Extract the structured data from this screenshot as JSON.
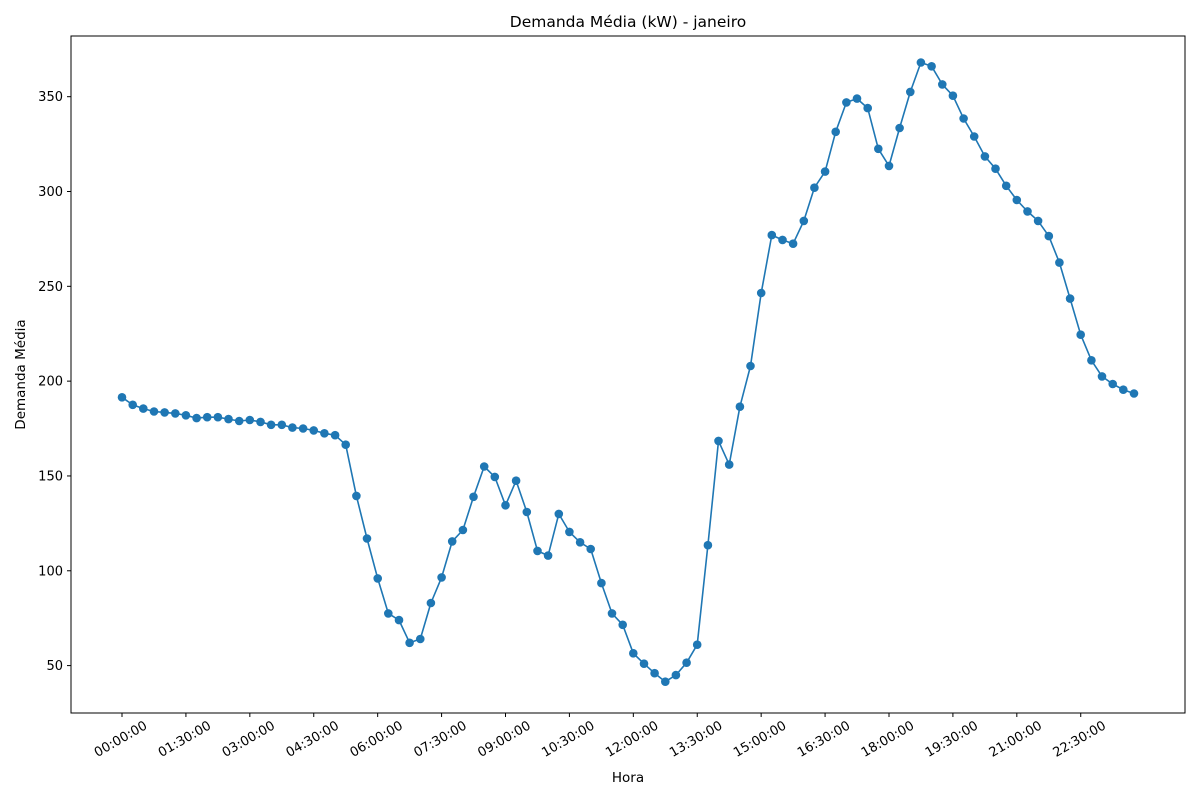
{
  "chart_data": {
    "type": "line",
    "title": "Demanda Média (kW) - janeiro",
    "xlabel": "Hora",
    "ylabel": "Demanda Média",
    "color": "#1f77b4",
    "x_ticks": [
      "00:00:00",
      "01:30:00",
      "03:00:00",
      "04:30:00",
      "06:00:00",
      "07:30:00",
      "09:00:00",
      "10:30:00",
      "12:00:00",
      "13:30:00",
      "15:00:00",
      "16:30:00",
      "18:00:00",
      "19:30:00",
      "21:00:00",
      "22:30:00"
    ],
    "y_ticks": [
      50,
      100,
      150,
      200,
      250,
      300,
      350
    ],
    "ylim": [
      25,
      382
    ],
    "series": [
      {
        "x": [
          "00:00:00",
          "00:15:00",
          "00:30:00",
          "00:45:00",
          "01:00:00",
          "01:15:00",
          "01:30:00",
          "01:45:00",
          "02:00:00",
          "02:15:00",
          "02:30:00",
          "02:45:00",
          "03:00:00",
          "03:15:00",
          "03:30:00",
          "03:45:00",
          "04:00:00",
          "04:15:00",
          "04:30:00",
          "04:45:00",
          "05:00:00",
          "05:15:00",
          "05:30:00",
          "05:45:00",
          "06:00:00",
          "06:15:00",
          "06:30:00",
          "06:45:00",
          "07:00:00",
          "07:15:00",
          "07:30:00",
          "07:45:00",
          "08:00:00",
          "08:15:00",
          "08:30:00",
          "08:45:00",
          "09:00:00",
          "09:15:00",
          "09:30:00",
          "09:45:00",
          "10:00:00",
          "10:15:00",
          "10:30:00",
          "10:45:00",
          "11:00:00",
          "11:15:00",
          "11:30:00",
          "11:45:00",
          "12:00:00",
          "12:15:00",
          "12:30:00",
          "12:45:00",
          "13:00:00",
          "13:15:00",
          "13:30:00",
          "13:45:00",
          "14:00:00",
          "14:15:00",
          "14:30:00",
          "14:45:00",
          "15:00:00",
          "15:15:00",
          "15:30:00",
          "15:45:00",
          "16:00:00",
          "16:15:00",
          "16:30:00",
          "16:45:00",
          "17:00:00",
          "17:15:00",
          "17:30:00",
          "17:45:00",
          "18:00:00",
          "18:15:00",
          "18:30:00",
          "18:45:00",
          "19:00:00",
          "19:15:00",
          "19:30:00",
          "19:45:00",
          "20:00:00",
          "20:15:00",
          "20:30:00",
          "20:45:00",
          "21:00:00",
          "21:15:00",
          "21:30:00",
          "21:45:00",
          "22:00:00",
          "22:15:00",
          "22:30:00",
          "22:45:00",
          "23:00:00",
          "23:15:00",
          "23:30:00",
          "23:45:00"
        ],
        "values": [
          191.5,
          187.5,
          185.5,
          184.0,
          183.5,
          183.0,
          182.0,
          180.5,
          181.0,
          181.0,
          180.0,
          179.0,
          179.5,
          178.5,
          177.0,
          177.0,
          175.5,
          175.0,
          174.0,
          172.5,
          171.5,
          166.5,
          139.5,
          117.0,
          96.0,
          77.5,
          74.0,
          62.0,
          64.0,
          83.0,
          96.5,
          115.5,
          121.5,
          139.0,
          155.0,
          149.5,
          134.5,
          147.5,
          131.0,
          110.5,
          108.0,
          130.0,
          120.5,
          115.0,
          111.5,
          93.5,
          77.5,
          71.5,
          56.5,
          51.0,
          46.0,
          41.5,
          45.0,
          51.5,
          61.0,
          113.5,
          168.5,
          156.0,
          186.5,
          208.0,
          246.5,
          277.0,
          274.5,
          272.5,
          284.5,
          302.0,
          310.5,
          331.5,
          347.0,
          349.0,
          344.0,
          322.5,
          313.5,
          333.5,
          352.5,
          368.0,
          366.0,
          356.5,
          350.5,
          338.5,
          329.0,
          318.5,
          312.0,
          303.0,
          295.5,
          289.5,
          284.5,
          276.5,
          262.5,
          243.5,
          224.5,
          211.0,
          202.5,
          198.5,
          195.5,
          193.5
        ]
      }
    ]
  }
}
